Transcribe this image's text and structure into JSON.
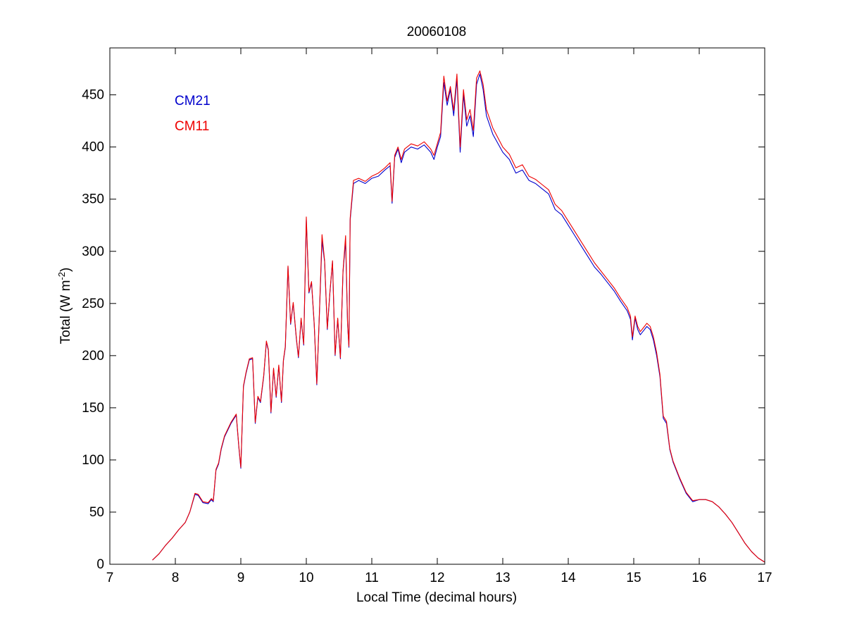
{
  "chart_data": {
    "type": "line",
    "title": "20060108",
    "xlabel": "Local Time (decimal hours)",
    "ylabel_main": "Total (W m",
    "ylabel_sup": "-2",
    "ylabel_close": ")",
    "xlim": [
      7,
      17
    ],
    "ylim": [
      0,
      495
    ],
    "xticks": [
      7,
      8,
      9,
      10,
      11,
      12,
      13,
      14,
      15,
      16,
      17
    ],
    "yticks": [
      0,
      50,
      100,
      150,
      200,
      250,
      300,
      350,
      400,
      450
    ],
    "grid": false,
    "legend_position": "top-left",
    "series": [
      {
        "name": "CM21",
        "color": "#0000cc",
        "points": [
          [
            7.65,
            4
          ],
          [
            7.75,
            10
          ],
          [
            7.85,
            18
          ],
          [
            7.95,
            25
          ],
          [
            8.05,
            33
          ],
          [
            8.15,
            40
          ],
          [
            8.22,
            50
          ],
          [
            8.3,
            67
          ],
          [
            8.35,
            66
          ],
          [
            8.42,
            59
          ],
          [
            8.5,
            58
          ],
          [
            8.55,
            62
          ],
          [
            8.58,
            60
          ],
          [
            8.62,
            90
          ],
          [
            8.66,
            96
          ],
          [
            8.7,
            110
          ],
          [
            8.75,
            122
          ],
          [
            8.85,
            135
          ],
          [
            8.93,
            143
          ],
          [
            8.97,
            112
          ],
          [
            9.0,
            92
          ],
          [
            9.04,
            170
          ],
          [
            9.08,
            183
          ],
          [
            9.13,
            196
          ],
          [
            9.18,
            197
          ],
          [
            9.22,
            135
          ],
          [
            9.26,
            160
          ],
          [
            9.3,
            155
          ],
          [
            9.35,
            180
          ],
          [
            9.39,
            213
          ],
          [
            9.42,
            205
          ],
          [
            9.46,
            145
          ],
          [
            9.5,
            187
          ],
          [
            9.54,
            160
          ],
          [
            9.58,
            190
          ],
          [
            9.62,
            155
          ],
          [
            9.65,
            195
          ],
          [
            9.68,
            208
          ],
          [
            9.72,
            285
          ],
          [
            9.76,
            230
          ],
          [
            9.8,
            250
          ],
          [
            9.85,
            215
          ],
          [
            9.88,
            198
          ],
          [
            9.92,
            235
          ],
          [
            9.96,
            210
          ],
          [
            10.0,
            330
          ],
          [
            10.04,
            260
          ],
          [
            10.08,
            270
          ],
          [
            10.12,
            230
          ],
          [
            10.16,
            172
          ],
          [
            10.2,
            240
          ],
          [
            10.24,
            310
          ],
          [
            10.28,
            290
          ],
          [
            10.32,
            225
          ],
          [
            10.36,
            260
          ],
          [
            10.4,
            290
          ],
          [
            10.44,
            200
          ],
          [
            10.48,
            235
          ],
          [
            10.52,
            197
          ],
          [
            10.56,
            280
          ],
          [
            10.6,
            310
          ],
          [
            10.63,
            230
          ],
          [
            10.65,
            208
          ],
          [
            10.67,
            330
          ],
          [
            10.72,
            365
          ],
          [
            10.8,
            368
          ],
          [
            10.9,
            365
          ],
          [
            11.0,
            370
          ],
          [
            11.1,
            372
          ],
          [
            11.2,
            378
          ],
          [
            11.28,
            382
          ],
          [
            11.31,
            346
          ],
          [
            11.35,
            390
          ],
          [
            11.4,
            398
          ],
          [
            11.45,
            385
          ],
          [
            11.5,
            395
          ],
          [
            11.6,
            400
          ],
          [
            11.7,
            398
          ],
          [
            11.8,
            402
          ],
          [
            11.9,
            395
          ],
          [
            11.95,
            388
          ],
          [
            12.0,
            400
          ],
          [
            12.05,
            410
          ],
          [
            12.1,
            462
          ],
          [
            12.15,
            440
          ],
          [
            12.2,
            455
          ],
          [
            12.25,
            430
          ],
          [
            12.3,
            465
          ],
          [
            12.35,
            395
          ],
          [
            12.4,
            450
          ],
          [
            12.45,
            420
          ],
          [
            12.5,
            430
          ],
          [
            12.55,
            410
          ],
          [
            12.6,
            460
          ],
          [
            12.65,
            470
          ],
          [
            12.7,
            455
          ],
          [
            12.75,
            430
          ],
          [
            12.85,
            412
          ],
          [
            13.0,
            395
          ],
          [
            13.1,
            388
          ],
          [
            13.2,
            375
          ],
          [
            13.3,
            378
          ],
          [
            13.4,
            368
          ],
          [
            13.5,
            365
          ],
          [
            13.6,
            360
          ],
          [
            13.7,
            355
          ],
          [
            13.8,
            340
          ],
          [
            13.9,
            335
          ],
          [
            14.0,
            325
          ],
          [
            14.1,
            315
          ],
          [
            14.2,
            305
          ],
          [
            14.3,
            295
          ],
          [
            14.4,
            285
          ],
          [
            14.5,
            278
          ],
          [
            14.6,
            270
          ],
          [
            14.7,
            262
          ],
          [
            14.8,
            252
          ],
          [
            14.9,
            243
          ],
          [
            14.95,
            235
          ],
          [
            14.98,
            215
          ],
          [
            15.02,
            236
          ],
          [
            15.06,
            225
          ],
          [
            15.1,
            220
          ],
          [
            15.15,
            224
          ],
          [
            15.2,
            228
          ],
          [
            15.25,
            225
          ],
          [
            15.3,
            215
          ],
          [
            15.35,
            200
          ],
          [
            15.4,
            180
          ],
          [
            15.45,
            140
          ],
          [
            15.5,
            135
          ],
          [
            15.55,
            110
          ],
          [
            15.6,
            98
          ],
          [
            15.7,
            82
          ],
          [
            15.8,
            68
          ],
          [
            15.9,
            60
          ],
          [
            16.0,
            62
          ],
          [
            16.1,
            62
          ],
          [
            16.2,
            60
          ],
          [
            16.3,
            55
          ],
          [
            16.4,
            48
          ],
          [
            16.5,
            40
          ],
          [
            16.6,
            30
          ],
          [
            16.7,
            20
          ],
          [
            16.8,
            12
          ],
          [
            16.9,
            6
          ],
          [
            17.0,
            2
          ]
        ]
      },
      {
        "name": "CM11",
        "color": "#ee0000",
        "points": [
          [
            7.65,
            4
          ],
          [
            7.75,
            10
          ],
          [
            7.85,
            18
          ],
          [
            7.95,
            25
          ],
          [
            8.05,
            33
          ],
          [
            8.15,
            40
          ],
          [
            8.22,
            50
          ],
          [
            8.3,
            68
          ],
          [
            8.35,
            67
          ],
          [
            8.42,
            60
          ],
          [
            8.5,
            59
          ],
          [
            8.55,
            63
          ],
          [
            8.58,
            61
          ],
          [
            8.62,
            91
          ],
          [
            8.66,
            97
          ],
          [
            8.7,
            111
          ],
          [
            8.75,
            123
          ],
          [
            8.85,
            136
          ],
          [
            8.93,
            144
          ],
          [
            8.97,
            113
          ],
          [
            9.0,
            93
          ],
          [
            9.04,
            171
          ],
          [
            9.08,
            184
          ],
          [
            9.13,
            197
          ],
          [
            9.18,
            198
          ],
          [
            9.22,
            136
          ],
          [
            9.26,
            161
          ],
          [
            9.3,
            156
          ],
          [
            9.35,
            181
          ],
          [
            9.39,
            214
          ],
          [
            9.42,
            206
          ],
          [
            9.46,
            146
          ],
          [
            9.5,
            188
          ],
          [
            9.54,
            161
          ],
          [
            9.58,
            191
          ],
          [
            9.62,
            156
          ],
          [
            9.65,
            196
          ],
          [
            9.68,
            209
          ],
          [
            9.72,
            286
          ],
          [
            9.76,
            231
          ],
          [
            9.8,
            251
          ],
          [
            9.85,
            216
          ],
          [
            9.88,
            199
          ],
          [
            9.92,
            236
          ],
          [
            9.96,
            211
          ],
          [
            10.0,
            333
          ],
          [
            10.04,
            261
          ],
          [
            10.08,
            271
          ],
          [
            10.12,
            231
          ],
          [
            10.16,
            173
          ],
          [
            10.2,
            241
          ],
          [
            10.24,
            316
          ],
          [
            10.28,
            291
          ],
          [
            10.32,
            226
          ],
          [
            10.36,
            261
          ],
          [
            10.4,
            291
          ],
          [
            10.44,
            201
          ],
          [
            10.48,
            236
          ],
          [
            10.52,
            198
          ],
          [
            10.56,
            281
          ],
          [
            10.6,
            315
          ],
          [
            10.63,
            231
          ],
          [
            10.65,
            209
          ],
          [
            10.67,
            332
          ],
          [
            10.72,
            368
          ],
          [
            10.8,
            370
          ],
          [
            10.9,
            367
          ],
          [
            11.0,
            372
          ],
          [
            11.1,
            375
          ],
          [
            11.2,
            380
          ],
          [
            11.28,
            385
          ],
          [
            11.31,
            348
          ],
          [
            11.35,
            392
          ],
          [
            11.4,
            400
          ],
          [
            11.45,
            388
          ],
          [
            11.5,
            398
          ],
          [
            11.6,
            403
          ],
          [
            11.7,
            401
          ],
          [
            11.8,
            405
          ],
          [
            11.9,
            398
          ],
          [
            11.95,
            392
          ],
          [
            12.0,
            403
          ],
          [
            12.05,
            414
          ],
          [
            12.1,
            468
          ],
          [
            12.15,
            444
          ],
          [
            12.2,
            458
          ],
          [
            12.25,
            435
          ],
          [
            12.3,
            470
          ],
          [
            12.35,
            400
          ],
          [
            12.4,
            455
          ],
          [
            12.45,
            426
          ],
          [
            12.5,
            436
          ],
          [
            12.55,
            416
          ],
          [
            12.6,
            466
          ],
          [
            12.65,
            473
          ],
          [
            12.7,
            460
          ],
          [
            12.75,
            436
          ],
          [
            12.85,
            418
          ],
          [
            13.0,
            400
          ],
          [
            13.1,
            393
          ],
          [
            13.2,
            380
          ],
          [
            13.3,
            383
          ],
          [
            13.4,
            372
          ],
          [
            13.5,
            369
          ],
          [
            13.6,
            364
          ],
          [
            13.7,
            359
          ],
          [
            13.8,
            345
          ],
          [
            13.9,
            339
          ],
          [
            14.0,
            329
          ],
          [
            14.1,
            319
          ],
          [
            14.2,
            309
          ],
          [
            14.3,
            299
          ],
          [
            14.4,
            289
          ],
          [
            14.5,
            281
          ],
          [
            14.6,
            273
          ],
          [
            14.7,
            265
          ],
          [
            14.8,
            255
          ],
          [
            14.9,
            246
          ],
          [
            14.95,
            238
          ],
          [
            14.98,
            218
          ],
          [
            15.02,
            238
          ],
          [
            15.06,
            228
          ],
          [
            15.1,
            223
          ],
          [
            15.15,
            227
          ],
          [
            15.2,
            231
          ],
          [
            15.25,
            228
          ],
          [
            15.3,
            218
          ],
          [
            15.35,
            203
          ],
          [
            15.4,
            182
          ],
          [
            15.45,
            142
          ],
          [
            15.5,
            137
          ],
          [
            15.55,
            111
          ],
          [
            15.6,
            99
          ],
          [
            15.7,
            83
          ],
          [
            15.8,
            69
          ],
          [
            15.9,
            61
          ],
          [
            16.0,
            62
          ],
          [
            16.1,
            62
          ],
          [
            16.2,
            60
          ],
          [
            16.3,
            55
          ],
          [
            16.4,
            48
          ],
          [
            16.5,
            40
          ],
          [
            16.6,
            30
          ],
          [
            16.7,
            20
          ],
          [
            16.8,
            12
          ],
          [
            16.9,
            6
          ],
          [
            17.0,
            2
          ]
        ]
      }
    ]
  }
}
